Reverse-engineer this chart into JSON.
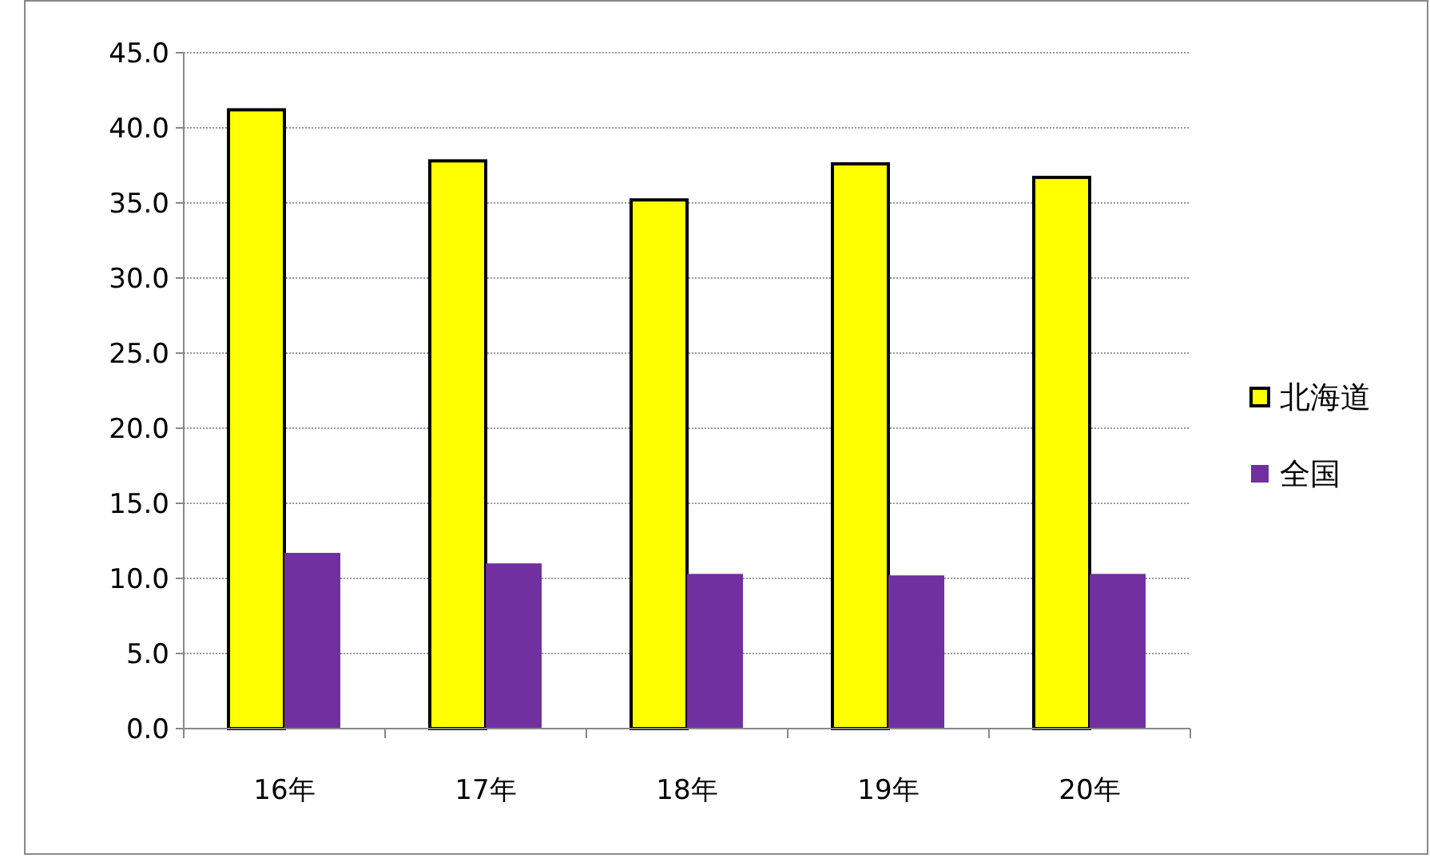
{
  "chart_data": {
    "type": "bar",
    "categories": [
      "16年",
      "17年",
      "18年",
      "19年",
      "20年"
    ],
    "series": [
      {
        "name": "北海道",
        "color": "#ffff00",
        "values": [
          41.2,
          37.8,
          35.2,
          37.6,
          36.7
        ]
      },
      {
        "name": "全国",
        "color": "#7030a0",
        "values": [
          11.7,
          11.0,
          10.3,
          10.2,
          10.3
        ]
      }
    ],
    "ylim": [
      0,
      45
    ],
    "yticks": [
      {
        "value": 0,
        "label": "0.0"
      },
      {
        "value": 5,
        "label": "5.0"
      },
      {
        "value": 10,
        "label": "10.0"
      },
      {
        "value": 15,
        "label": "15.0"
      },
      {
        "value": 20,
        "label": "20.0"
      },
      {
        "value": 25,
        "label": "25.0"
      },
      {
        "value": 30,
        "label": "30.0"
      },
      {
        "value": 35,
        "label": "35.0"
      },
      {
        "value": 40,
        "label": "40.0"
      },
      {
        "value": 45,
        "label": "45.0"
      }
    ],
    "grid": "y",
    "legend": "right"
  }
}
